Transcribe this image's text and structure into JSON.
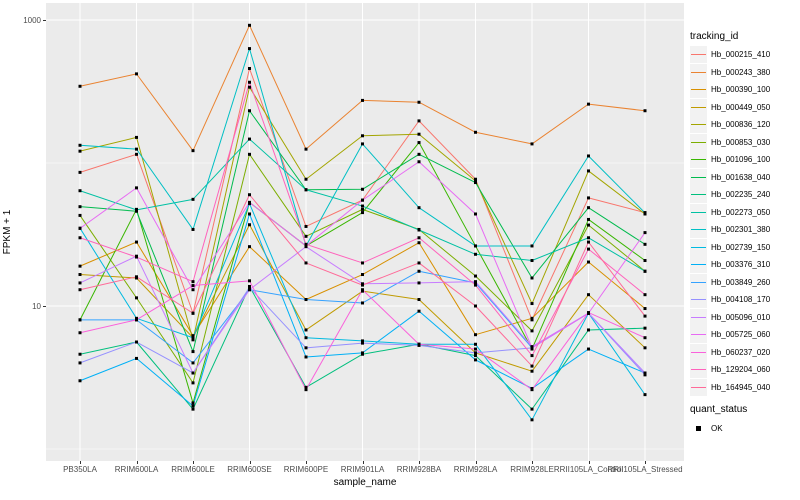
{
  "style": {
    "panel_bg": "#EBEBEB",
    "grid_color": "#FFFFFF",
    "axis_text_color": "#4D4D4D",
    "title_color": "#000000",
    "legend_key_bg": "#F2F2F2",
    "marker_color": "#000000",
    "background": "#FFFFFF"
  },
  "legend": {
    "tracking_title": "tracking_id",
    "quant_title": "quant_status",
    "quant_items": [
      {
        "label": "OK",
        "marker": "black-square"
      }
    ]
  },
  "chart_data": {
    "type": "line",
    "title": "",
    "xlabel": "sample_name",
    "ylabel": "FPKM + 1",
    "y_scale": "log10",
    "ylim": [
      0.85,
      1320
    ],
    "y_tick_labels": [
      {
        "label": "1000",
        "value": 1000
      },
      {
        "label": "10",
        "value": 10
      }
    ],
    "y_major_gridlines": [
      10,
      1000
    ],
    "y_minor_gridlines": [
      1,
      100
    ],
    "grid": "on",
    "legend_position": "right",
    "point_marker": {
      "shape": "square",
      "color": "#000000",
      "legend_label": "OK"
    },
    "categories": [
      "PB350LA",
      "RRIM600LA",
      "RRIM600LE",
      "RRIM600SE",
      "RRIM600PE",
      "RRIM901LA",
      "RRIM928BA",
      "RRIM928LA",
      "RRIM928LE",
      "RRII105LA_Control",
      "RRII105LA_Stressed"
    ],
    "series": [
      {
        "name": "Hb_000215_410",
        "color": "#F8766D",
        "values": [
          86,
          115,
          8.9,
          458,
          36,
          55,
          197,
          77,
          8.0,
          57,
          45
        ]
      },
      {
        "name": "Hb_000243_380",
        "color": "#EA8331",
        "values": [
          344,
          420,
          122,
          918,
          125,
          274,
          266,
          164,
          136,
          258,
          232
        ]
      },
      {
        "name": "Hb_000390_100",
        "color": "#D89000",
        "values": [
          19,
          28,
          6.2,
          26,
          11.1,
          16.6,
          27.7,
          6.3,
          8.2,
          20.3,
          9.6
        ]
      },
      {
        "name": "Hb_000449_050",
        "color": "#C09B00",
        "values": [
          16.6,
          15.7,
          6.0,
          37,
          6.8,
          12.7,
          11.1,
          4.7,
          3.5,
          12,
          5.1
        ]
      },
      {
        "name": "Hb_000836_120",
        "color": "#A3A500",
        "values": [
          121,
          151,
          5.8,
          339,
          77,
          155,
          159,
          75,
          10.4,
          88,
          44
        ]
      },
      {
        "name": "Hb_000853_030",
        "color": "#7CAE00",
        "values": [
          43,
          11.4,
          2.9,
          115,
          30.7,
          47.4,
          34.3,
          16.2,
          6.7,
          36.8,
          17.5
        ]
      },
      {
        "name": "Hb_001096_100",
        "color": "#39B600",
        "values": [
          8.0,
          47.4,
          2.1,
          53,
          26.3,
          45,
          139,
          26.3,
          5.0,
          40.3,
          20.8
        ]
      },
      {
        "name": "Hb_001638_040",
        "color": "#00BB4E",
        "values": [
          49.5,
          46,
          4.8,
          232,
          65,
          65.5,
          115,
          73,
          15.7,
          48.7,
          27
        ]
      },
      {
        "name": "Hb_002235_240",
        "color": "#00BF7D",
        "values": [
          4.6,
          5.6,
          1.9,
          13.7,
          2.7,
          4.6,
          5.4,
          4.5,
          1.9,
          6.8,
          7.0
        ]
      },
      {
        "name": "Hb_002273_050",
        "color": "#00C1A3",
        "values": [
          64,
          47,
          55.7,
          147,
          65,
          50,
          34,
          23,
          20.8,
          30,
          17.5
        ]
      },
      {
        "name": "Hb_002301_380",
        "color": "#00BFC4",
        "values": [
          133,
          125,
          34.3,
          631,
          26.3,
          136,
          48.7,
          26.3,
          26.3,
          112,
          44.8
        ]
      },
      {
        "name": "Hb_002739_150",
        "color": "#00BAE0",
        "values": [
          35,
          8.2,
          6.0,
          52,
          6.0,
          5.7,
          5.4,
          5.4,
          1.6,
          8.9,
          2.4
        ]
      },
      {
        "name": "Hb_003376_310",
        "color": "#00B0F6",
        "values": [
          3.0,
          4.3,
          2.0,
          44,
          4.4,
          4.7,
          9.2,
          4.2,
          2.65,
          5.0,
          3.4
        ]
      },
      {
        "name": "Hb_003849_260",
        "color": "#35A2FF",
        "values": [
          8.0,
          8.0,
          4.0,
          13.0,
          11.1,
          10.5,
          17.5,
          14.5,
          5.1,
          8.9,
          3.4
        ]
      },
      {
        "name": "Hb_004108_170",
        "color": "#9590FF",
        "values": [
          4.0,
          5.6,
          3.4,
          13.5,
          5.1,
          5.5,
          5.3,
          4.7,
          5.1,
          8.9,
          3.3
        ]
      },
      {
        "name": "Hb_005096_010",
        "color": "#C77CFF",
        "values": [
          14.5,
          22.3,
          3.4,
          13.0,
          26.0,
          14.3,
          14.5,
          14.8,
          5.2,
          8.9,
          3.4
        ]
      },
      {
        "name": "Hb_005725_060",
        "color": "#E76BF3",
        "values": [
          34.9,
          67,
          13.0,
          53,
          26.3,
          55,
          102,
          44,
          5.1,
          8.9,
          32.6
        ]
      },
      {
        "name": "Hb_060237_020",
        "color": "#FA62DB",
        "values": [
          6.5,
          8.0,
          13.9,
          15.0,
          2.6,
          13.0,
          5.4,
          5.0,
          2.6,
          9.0,
          6.0
        ]
      },
      {
        "name": "Hb_129204_060",
        "color": "#FF62BC",
        "values": [
          30,
          22,
          14.8,
          367,
          27,
          20,
          30,
          14,
          4.5,
          25,
          12
        ]
      },
      {
        "name": "Hb_164945_040",
        "color": "#FF6A98",
        "values": [
          13,
          16,
          8.9,
          60,
          20,
          14,
          20,
          10,
          3.8,
          28,
          8.5
        ]
      }
    ]
  }
}
